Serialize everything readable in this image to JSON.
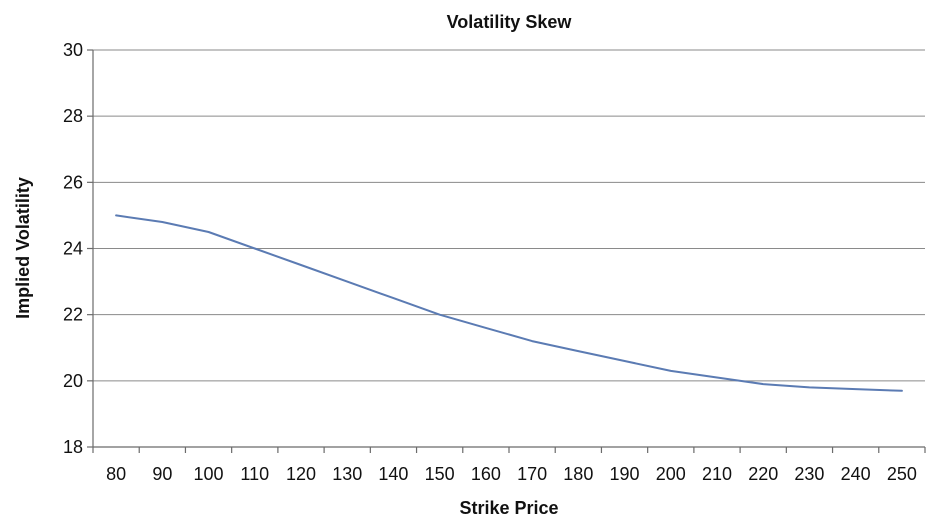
{
  "chart_data": {
    "type": "line",
    "title": "Volatility Skew",
    "xlabel": "Strike Price",
    "ylabel": "Implied Volatility",
    "x": [
      80,
      90,
      100,
      110,
      120,
      130,
      140,
      150,
      160,
      170,
      180,
      190,
      200,
      210,
      220,
      230,
      240,
      250
    ],
    "x_tick_labels": [
      "80",
      "90",
      "100",
      "110",
      "120",
      "130",
      "140",
      "150",
      "160",
      "170",
      "180",
      "190",
      "200",
      "210",
      "220",
      "230",
      "240",
      "250"
    ],
    "y_ticks": [
      18,
      20,
      22,
      24,
      26,
      28,
      30
    ],
    "y_tick_labels": [
      "18",
      "20",
      "22",
      "24",
      "26",
      "28",
      "30"
    ],
    "ylim": [
      18,
      30
    ],
    "grid": true,
    "legend": "none",
    "series": [
      {
        "values": [
          25.0,
          24.8,
          24.5,
          24.0,
          23.5,
          23.0,
          22.5,
          22.0,
          21.6,
          21.2,
          20.9,
          20.6,
          20.3,
          20.1,
          19.9,
          19.8,
          19.75,
          19.7
        ],
        "color": "#5b7bb3"
      }
    ]
  }
}
